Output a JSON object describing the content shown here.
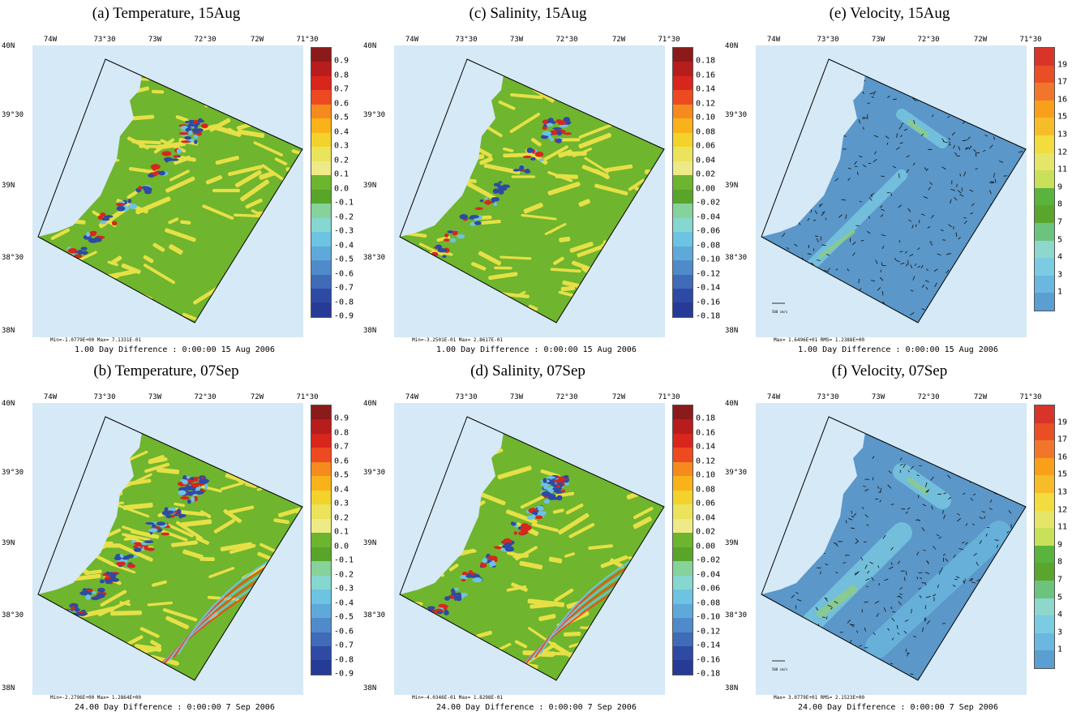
{
  "lon_labels": [
    "74W",
    "73°30",
    "73W",
    "72°30",
    "72W",
    "71°30"
  ],
  "lat_labels": [
    "40N",
    "39°30",
    "39N",
    "38°30",
    "38N"
  ],
  "colors": {
    "water": "#d6e9f6",
    "model_green": "#6fb52e",
    "model_yellow": "#e6e046",
    "model_blue": "#5b97c9",
    "scale_temperature_salinity": [
      "#8b1a1a",
      "#b81d1d",
      "#d9261c",
      "#ee4a22",
      "#f58a1f",
      "#f9b21a",
      "#f3d22b",
      "#ebe35b",
      "#eeea88",
      "#6db42f",
      "#58a52a",
      "#86d29b",
      "#86d7d0",
      "#6dc3e2",
      "#5fa9da",
      "#4f8bca",
      "#3f6bb8",
      "#2e4aa5",
      "#263b96"
    ],
    "scale_velocity": [
      "#d8342a",
      "#ea4e25",
      "#f1762c",
      "#f9a01b",
      "#f6bd28",
      "#f2dc3e",
      "#e5e56a",
      "#c8e05a",
      "#5ab33c",
      "#5aa62d",
      "#6bc37d",
      "#8fd6cd",
      "#7bcbe2",
      "#6ab8df",
      "#5a9ed2"
    ]
  },
  "panels": [
    {
      "id": "a",
      "title": "(a) Temperature, 15Aug",
      "variable": "temperature",
      "stats": "Min=-1.0779E+00  Max= 7.1331E-01",
      "caption": "1.00 Day Difference :  0:00:00  15 Aug 2006",
      "colorbar_labels": [
        "0.9",
        "0.8",
        "0.7",
        "0.6",
        "0.5",
        "0.4",
        "0.3",
        "0.2",
        "0.1",
        "0.0",
        "-0.1",
        "-0.2",
        "-0.3",
        "-0.4",
        "-0.5",
        "-0.6",
        "-0.7",
        "-0.8",
        "-0.9"
      ]
    },
    {
      "id": "c",
      "title": "(c) Salinity, 15Aug",
      "variable": "salinity",
      "stats": "Min=-3.2501E-01  Max= 2.8617E-01",
      "caption": "1.00 Day Difference :  0:00:00  15 Aug 2006",
      "colorbar_labels": [
        "0.18",
        "0.16",
        "0.14",
        "0.12",
        "0.10",
        "0.08",
        "0.06",
        "0.04",
        "0.02",
        "0.00",
        "-0.02",
        "-0.04",
        "-0.06",
        "-0.08",
        "-0.10",
        "-0.12",
        "-0.14",
        "-0.16",
        "-0.18"
      ]
    },
    {
      "id": "e",
      "title": "(e) Velocity, 15Aug",
      "variable": "velocity",
      "stats": "Max= 1.6496E+01  RMS= 1.2388E+00",
      "caption": "1.00 Day Difference :  0:00:00  15 Aug 2006",
      "scale_label": "500 cm/s",
      "colorbar_labels": [
        "19",
        "17",
        "16",
        "15",
        "13",
        "12",
        "11",
        "9",
        "8",
        "7",
        "5",
        "4",
        "3",
        "1"
      ]
    },
    {
      "id": "b",
      "title": "(b) Temperature, 07Sep",
      "variable": "temperature",
      "stats": "Min=-2.2796E+00  Max= 1.2864E+00",
      "caption": "24.00 Day Difference :  0:00:00   7 Sep 2006",
      "colorbar_labels": [
        "0.9",
        "0.8",
        "0.7",
        "0.6",
        "0.5",
        "0.4",
        "0.3",
        "0.2",
        "0.1",
        "0.0",
        "-0.1",
        "-0.2",
        "-0.3",
        "-0.4",
        "-0.5",
        "-0.6",
        "-0.7",
        "-0.8",
        "-0.9"
      ]
    },
    {
      "id": "d",
      "title": "(d) Salinity, 07Sep",
      "variable": "salinity",
      "stats": "Min=-4.0346E-01  Max= 1.8298E-01",
      "caption": "24.00 Day Difference :  0:00:00   7 Sep 2006",
      "colorbar_labels": [
        "0.18",
        "0.16",
        "0.14",
        "0.12",
        "0.10",
        "0.08",
        "0.06",
        "0.04",
        "0.02",
        "0.00",
        "-0.02",
        "-0.04",
        "-0.06",
        "-0.08",
        "-0.10",
        "-0.12",
        "-0.14",
        "-0.16",
        "-0.18"
      ]
    },
    {
      "id": "f",
      "title": "(f) Velocity, 07Sep",
      "variable": "velocity",
      "stats": "Max= 3.0779E+01  RMS= 2.1523E+00",
      "caption": "24.00 Day Difference :  0:00:00   7 Sep 2006",
      "scale_label": "500 cm/s",
      "colorbar_labels": [
        "19",
        "17",
        "16",
        "15",
        "13",
        "12",
        "11",
        "9",
        "8",
        "7",
        "5",
        "4",
        "3",
        "1"
      ]
    }
  ]
}
